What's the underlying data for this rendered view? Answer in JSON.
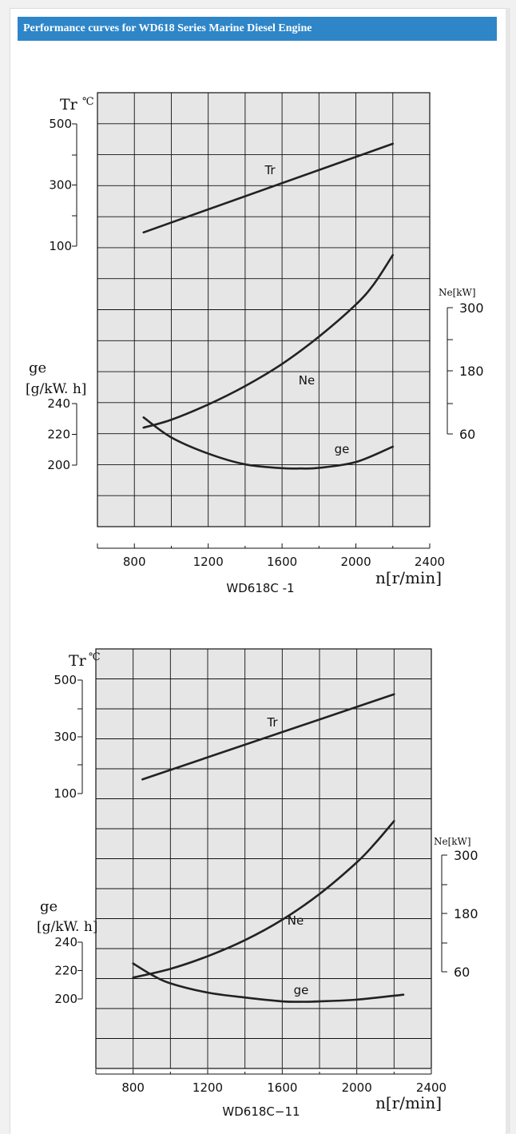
{
  "header": {
    "title": "Performance curves for WD618 Series Marine Diesel Engine"
  },
  "colors": {
    "header_bg": "#2e86c8",
    "plot_bg": "#e6e6e6",
    "grid": "#111111",
    "curve": "#222222"
  },
  "chart_data": [
    {
      "type": "line",
      "title": "WD618C  -1",
      "xlabel": "n[r/min]",
      "x_ticks": [
        "800",
        "1200",
        "1600",
        "2000",
        "2400"
      ],
      "xlim": [
        600,
        2400
      ],
      "grid": true,
      "tr_axis": {
        "label": "Tr",
        "unit": "℃",
        "ticks": [
          "500",
          "300",
          "100"
        ],
        "range": [
          100,
          500
        ]
      },
      "ge_axis": {
        "label": "ge",
        "unit": "[g/kW. h]",
        "ticks": [
          "240",
          "220",
          "200"
        ],
        "range": [
          200,
          240
        ]
      },
      "ne_axis": {
        "label": "Ne[kW]",
        "ticks": [
          "300",
          "180",
          "60"
        ],
        "range": [
          60,
          300
        ]
      },
      "series": [
        {
          "name": "Tr",
          "axis": "tr",
          "x": [
            850,
            2200
          ],
          "y": [
            145,
            435
          ]
        },
        {
          "name": "Ne",
          "axis": "ne",
          "x": [
            850,
            1000,
            1200,
            1400,
            1600,
            1800,
            2000,
            2100,
            2200
          ],
          "y": [
            72,
            87,
            116,
            151,
            193,
            245,
            306,
            346,
            400
          ]
        },
        {
          "name": "ge",
          "axis": "ge",
          "x": [
            850,
            1000,
            1200,
            1400,
            1600,
            1700,
            1800,
            2000,
            2200
          ],
          "y": [
            231,
            218,
            207.5,
            200.5,
            198,
            197.8,
            198.2,
            202,
            212
          ]
        }
      ]
    },
    {
      "type": "line",
      "title": "WD618C−11",
      "xlabel": "n[r/min]",
      "x_ticks": [
        "800",
        "1200",
        "1600",
        "2000",
        "2400"
      ],
      "xlim": [
        600,
        2400
      ],
      "grid": true,
      "tr_axis": {
        "label": "Tr",
        "unit": "℃",
        "ticks": [
          "500",
          "300",
          "100"
        ],
        "range": [
          100,
          500
        ]
      },
      "ge_axis": {
        "label": "ge",
        "unit": "[g/kW. h]",
        "ticks": [
          "240",
          "220",
          "200"
        ],
        "range": [
          200,
          240
        ]
      },
      "ne_axis": {
        "label": "Ne[kW]",
        "ticks": [
          "300",
          "180",
          "60"
        ],
        "range": [
          60,
          300
        ]
      },
      "series": [
        {
          "name": "Tr",
          "axis": "tr",
          "x": [
            850,
            2200
          ],
          "y": [
            150,
            450
          ]
        },
        {
          "name": "Ne",
          "axis": "ne",
          "x": [
            800,
            1000,
            1200,
            1400,
            1600,
            1800,
            2000,
            2100,
            2200
          ],
          "y": [
            48,
            66,
            92,
            125,
            167,
            220,
            285,
            325,
            370
          ]
        },
        {
          "name": "ge",
          "axis": "ge",
          "x": [
            800,
            900,
            1000,
            1200,
            1400,
            1600,
            1700,
            1800,
            2000,
            2250
          ],
          "y": [
            225,
            217,
            211,
            204.5,
            201,
            198.3,
            198,
            198.3,
            199.5,
            203
          ]
        }
      ]
    }
  ]
}
